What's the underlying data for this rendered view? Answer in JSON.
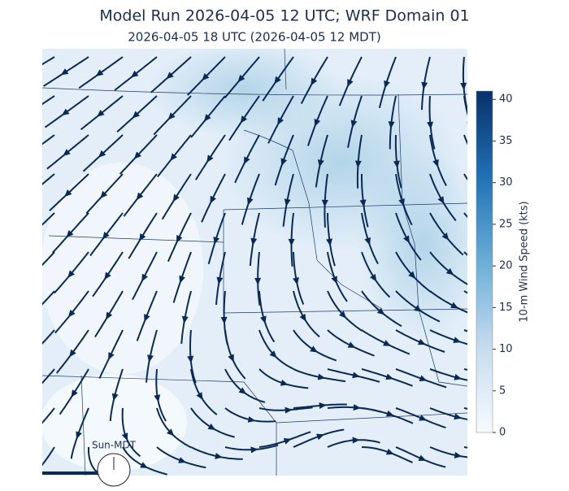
{
  "header": {
    "title": "Model Run 2026-04-05 12 UTC; WRF Domain 01",
    "subtitle": "2026-04-05 18 UTC  (2026-04-05 12 MDT)"
  },
  "colorbar": {
    "label": "10-m Wind Speed (kts)",
    "lim": [
      0,
      41
    ],
    "ticks": [
      0,
      5,
      10,
      15,
      20,
      25,
      30,
      35,
      40
    ],
    "colors": [
      "#f7fbff",
      "#c6dbef",
      "#6baed6",
      "#2171b5",
      "#08306b"
    ]
  },
  "clock": {
    "label": "Sun-MDT"
  }
}
